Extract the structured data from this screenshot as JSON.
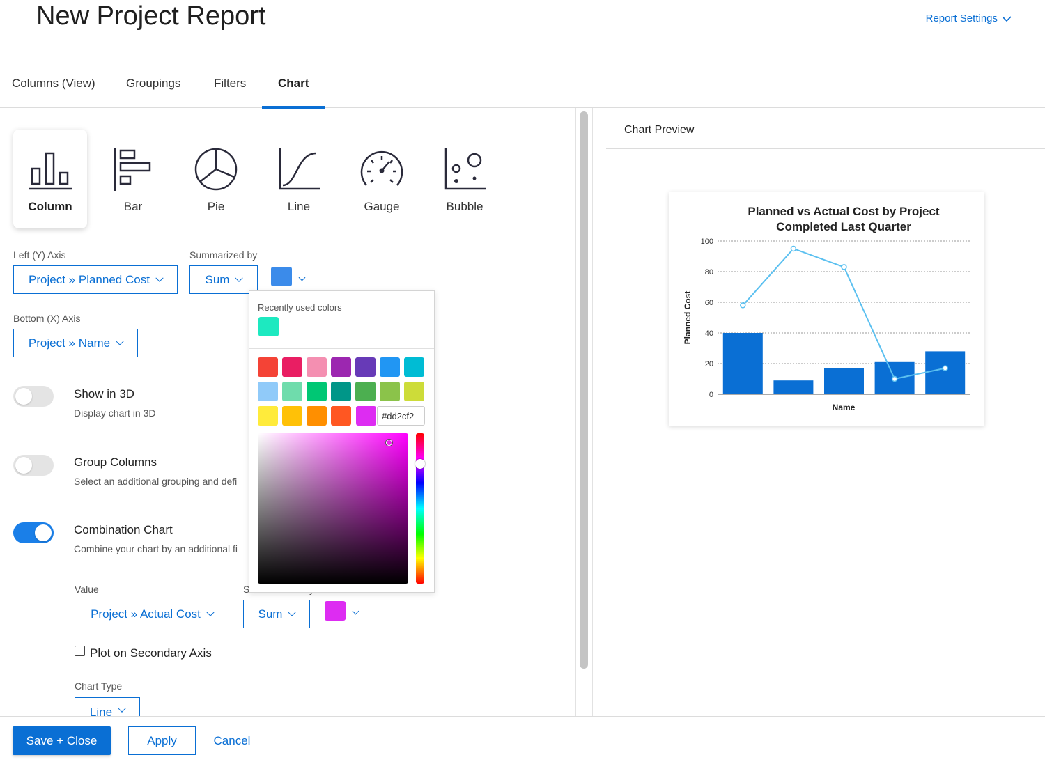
{
  "header": {
    "title": "New Project Report",
    "settings_label": "Report Settings"
  },
  "tabs": [
    {
      "label": "Columns (View)"
    },
    {
      "label": "Groupings"
    },
    {
      "label": "Filters"
    },
    {
      "label": "Chart",
      "active": true
    }
  ],
  "chart_types": [
    {
      "label": "Column",
      "icon": "column-chart-icon",
      "selected": true
    },
    {
      "label": "Bar",
      "icon": "bar-chart-icon"
    },
    {
      "label": "Pie",
      "icon": "pie-chart-icon"
    },
    {
      "label": "Line",
      "icon": "line-chart-icon"
    },
    {
      "label": "Gauge",
      "icon": "gauge-chart-icon"
    },
    {
      "label": "Bubble",
      "icon": "bubble-chart-icon"
    }
  ],
  "y_axis": {
    "label": "Left (Y) Axis",
    "value": "Project » Planned Cost"
  },
  "summarized": {
    "label": "Summarized by",
    "value": "Sum",
    "color": "#3b8bea"
  },
  "x_axis": {
    "label": "Bottom (X) Axis",
    "value": "Project » Name"
  },
  "options": {
    "show3d": {
      "title": "Show in 3D",
      "desc": "Display chart in 3D",
      "on": false
    },
    "group": {
      "title": "Group Columns",
      "desc": "Select an additional grouping and defi",
      "on": false
    },
    "combo": {
      "title": "Combination Chart",
      "desc": "Combine your chart by an additional fi",
      "on": true
    }
  },
  "combination": {
    "value_label": "Value",
    "value": "Project » Actual Cost",
    "summarized_label_visible": "S",
    "summarized_suffix": "y",
    "summarized_value": "Sum",
    "color": "#dd2cf2",
    "secondary_axis_label": "Plot on Secondary Axis",
    "secondary_axis_checked": false,
    "chart_type_label": "Chart Type",
    "chart_type_value": "Line"
  },
  "color_picker": {
    "recent_label": "Recently used colors",
    "recent_colors": [
      "#1de9c0"
    ],
    "palette": [
      "#f44336",
      "#e91e63",
      "#f48fb1",
      "#9c27b0",
      "#673ab7",
      "#2196f3",
      "#00bcd4",
      "#90caf9",
      "#6fdcac",
      "#00c774",
      "#009688",
      "#4caf50",
      "#8bc34a",
      "#cddc39",
      "#ffeb3b",
      "#ffc107",
      "#ff8f00",
      "#ff5722"
    ],
    "current": "#dd2cf2",
    "hex_value": "#dd2cf2"
  },
  "preview": {
    "title": "Chart Preview"
  },
  "chart_data": {
    "type": "bar",
    "title": "Planned vs Actual Cost by Project",
    "subtitle": "Completed Last Quarter",
    "xlabel": "Name",
    "ylabel": "Planned Cost",
    "ylim": [
      0,
      100
    ],
    "yticks": [
      0,
      20,
      40,
      60,
      80,
      100
    ],
    "grid": true,
    "categories": [
      "",
      "",
      "",
      "",
      ""
    ],
    "series": [
      {
        "type": "bar",
        "values": [
          40,
          9,
          17,
          21,
          28
        ],
        "color": "#0a6fd4"
      },
      {
        "type": "line",
        "values": [
          58,
          95,
          83,
          10,
          17
        ],
        "color": "#5bc0f0"
      }
    ]
  },
  "footer": {
    "save_label": "Save + Close",
    "apply_label": "Apply",
    "cancel_label": "Cancel"
  }
}
